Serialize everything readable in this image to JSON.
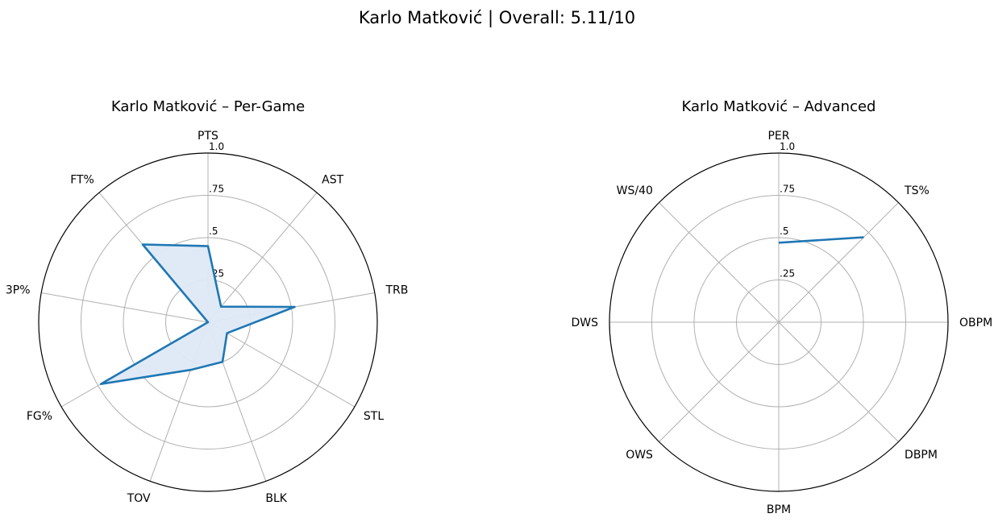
{
  "figure": {
    "title": "Karlo Matković | Overall: 5.11/10"
  },
  "chart_data": [
    {
      "type": "radar",
      "title": "Karlo Matković – Per-Game",
      "categories": [
        "PTS",
        "AST",
        "TRB",
        "STL",
        "BLK",
        "TOV",
        "FG%",
        "3P%",
        "FT%"
      ],
      "rlim": [
        0,
        1
      ],
      "rticks": [
        ".25",
        ".5",
        ".75",
        "1.0"
      ],
      "grid": true,
      "filled": true,
      "series": [
        {
          "values": [
            0.45,
            0.12,
            0.52,
            0.13,
            0.25,
            0.3,
            0.73,
            0.0,
            0.6
          ]
        }
      ]
    },
    {
      "type": "radar",
      "title": "Karlo Matković – Advanced",
      "categories": [
        "PER",
        "TS%",
        "OBPM",
        "DBPM",
        "BPM",
        "OWS",
        "DWS",
        "WS/40"
      ],
      "rlim": [
        0,
        1
      ],
      "rticks": [
        ".25",
        ".5",
        ".75",
        "1.0"
      ],
      "grid": true,
      "filled": false,
      "series": [
        {
          "values": [
            0.47,
            0.71,
            null,
            null,
            null,
            null,
            null,
            null
          ]
        }
      ]
    }
  ],
  "colors": {
    "series": "#1f77b4",
    "fill": "#dde9f5",
    "grid": "#b0b0b0"
  }
}
